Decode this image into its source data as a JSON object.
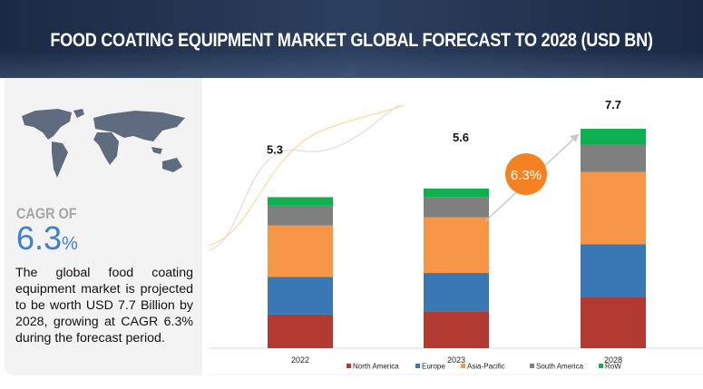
{
  "header": {
    "title": "FOOD COATING EQUIPMENT MARKET GLOBAL FORECAST TO 2028 (USD BN)"
  },
  "left_panel": {
    "cagr_label": "CAGR OF",
    "cagr_value": "6.3",
    "cagr_unit": "%",
    "description": "The global food coating equipment market is projected to be worth USD 7.7 Billion by 2028, growing at CAGR 6.3% during the forecast period."
  },
  "chart_data": {
    "type": "bar",
    "stacked": true,
    "title": "FOOD COATING EQUIPMENT MARKET GLOBAL FORECAST TO 2028 (USD BN)",
    "categories": [
      "2022",
      "2023",
      "2028"
    ],
    "totals": [
      "5.3",
      "5.6",
      "7.7"
    ],
    "series": [
      {
        "name": "North America",
        "color": "#b33a31",
        "values": [
          1.18,
          1.3,
          1.81
        ]
      },
      {
        "name": "Europe",
        "color": "#3a78b5",
        "values": [
          1.32,
          1.34,
          1.84
        ]
      },
      {
        "name": "Asia-Pacific",
        "color": "#f79646",
        "values": [
          1.81,
          1.95,
          2.53
        ]
      },
      {
        "name": "South America",
        "color": "#7f7f7f",
        "values": [
          0.69,
          0.7,
          0.95
        ]
      },
      {
        "name": "RoW",
        "color": "#0fb050",
        "values": [
          0.3,
          0.31,
          0.57
        ]
      }
    ],
    "annotation": "6.3%",
    "annotation_color": "#f58220",
    "ylim": [
      0,
      7.8
    ],
    "legend": "bottom"
  }
}
